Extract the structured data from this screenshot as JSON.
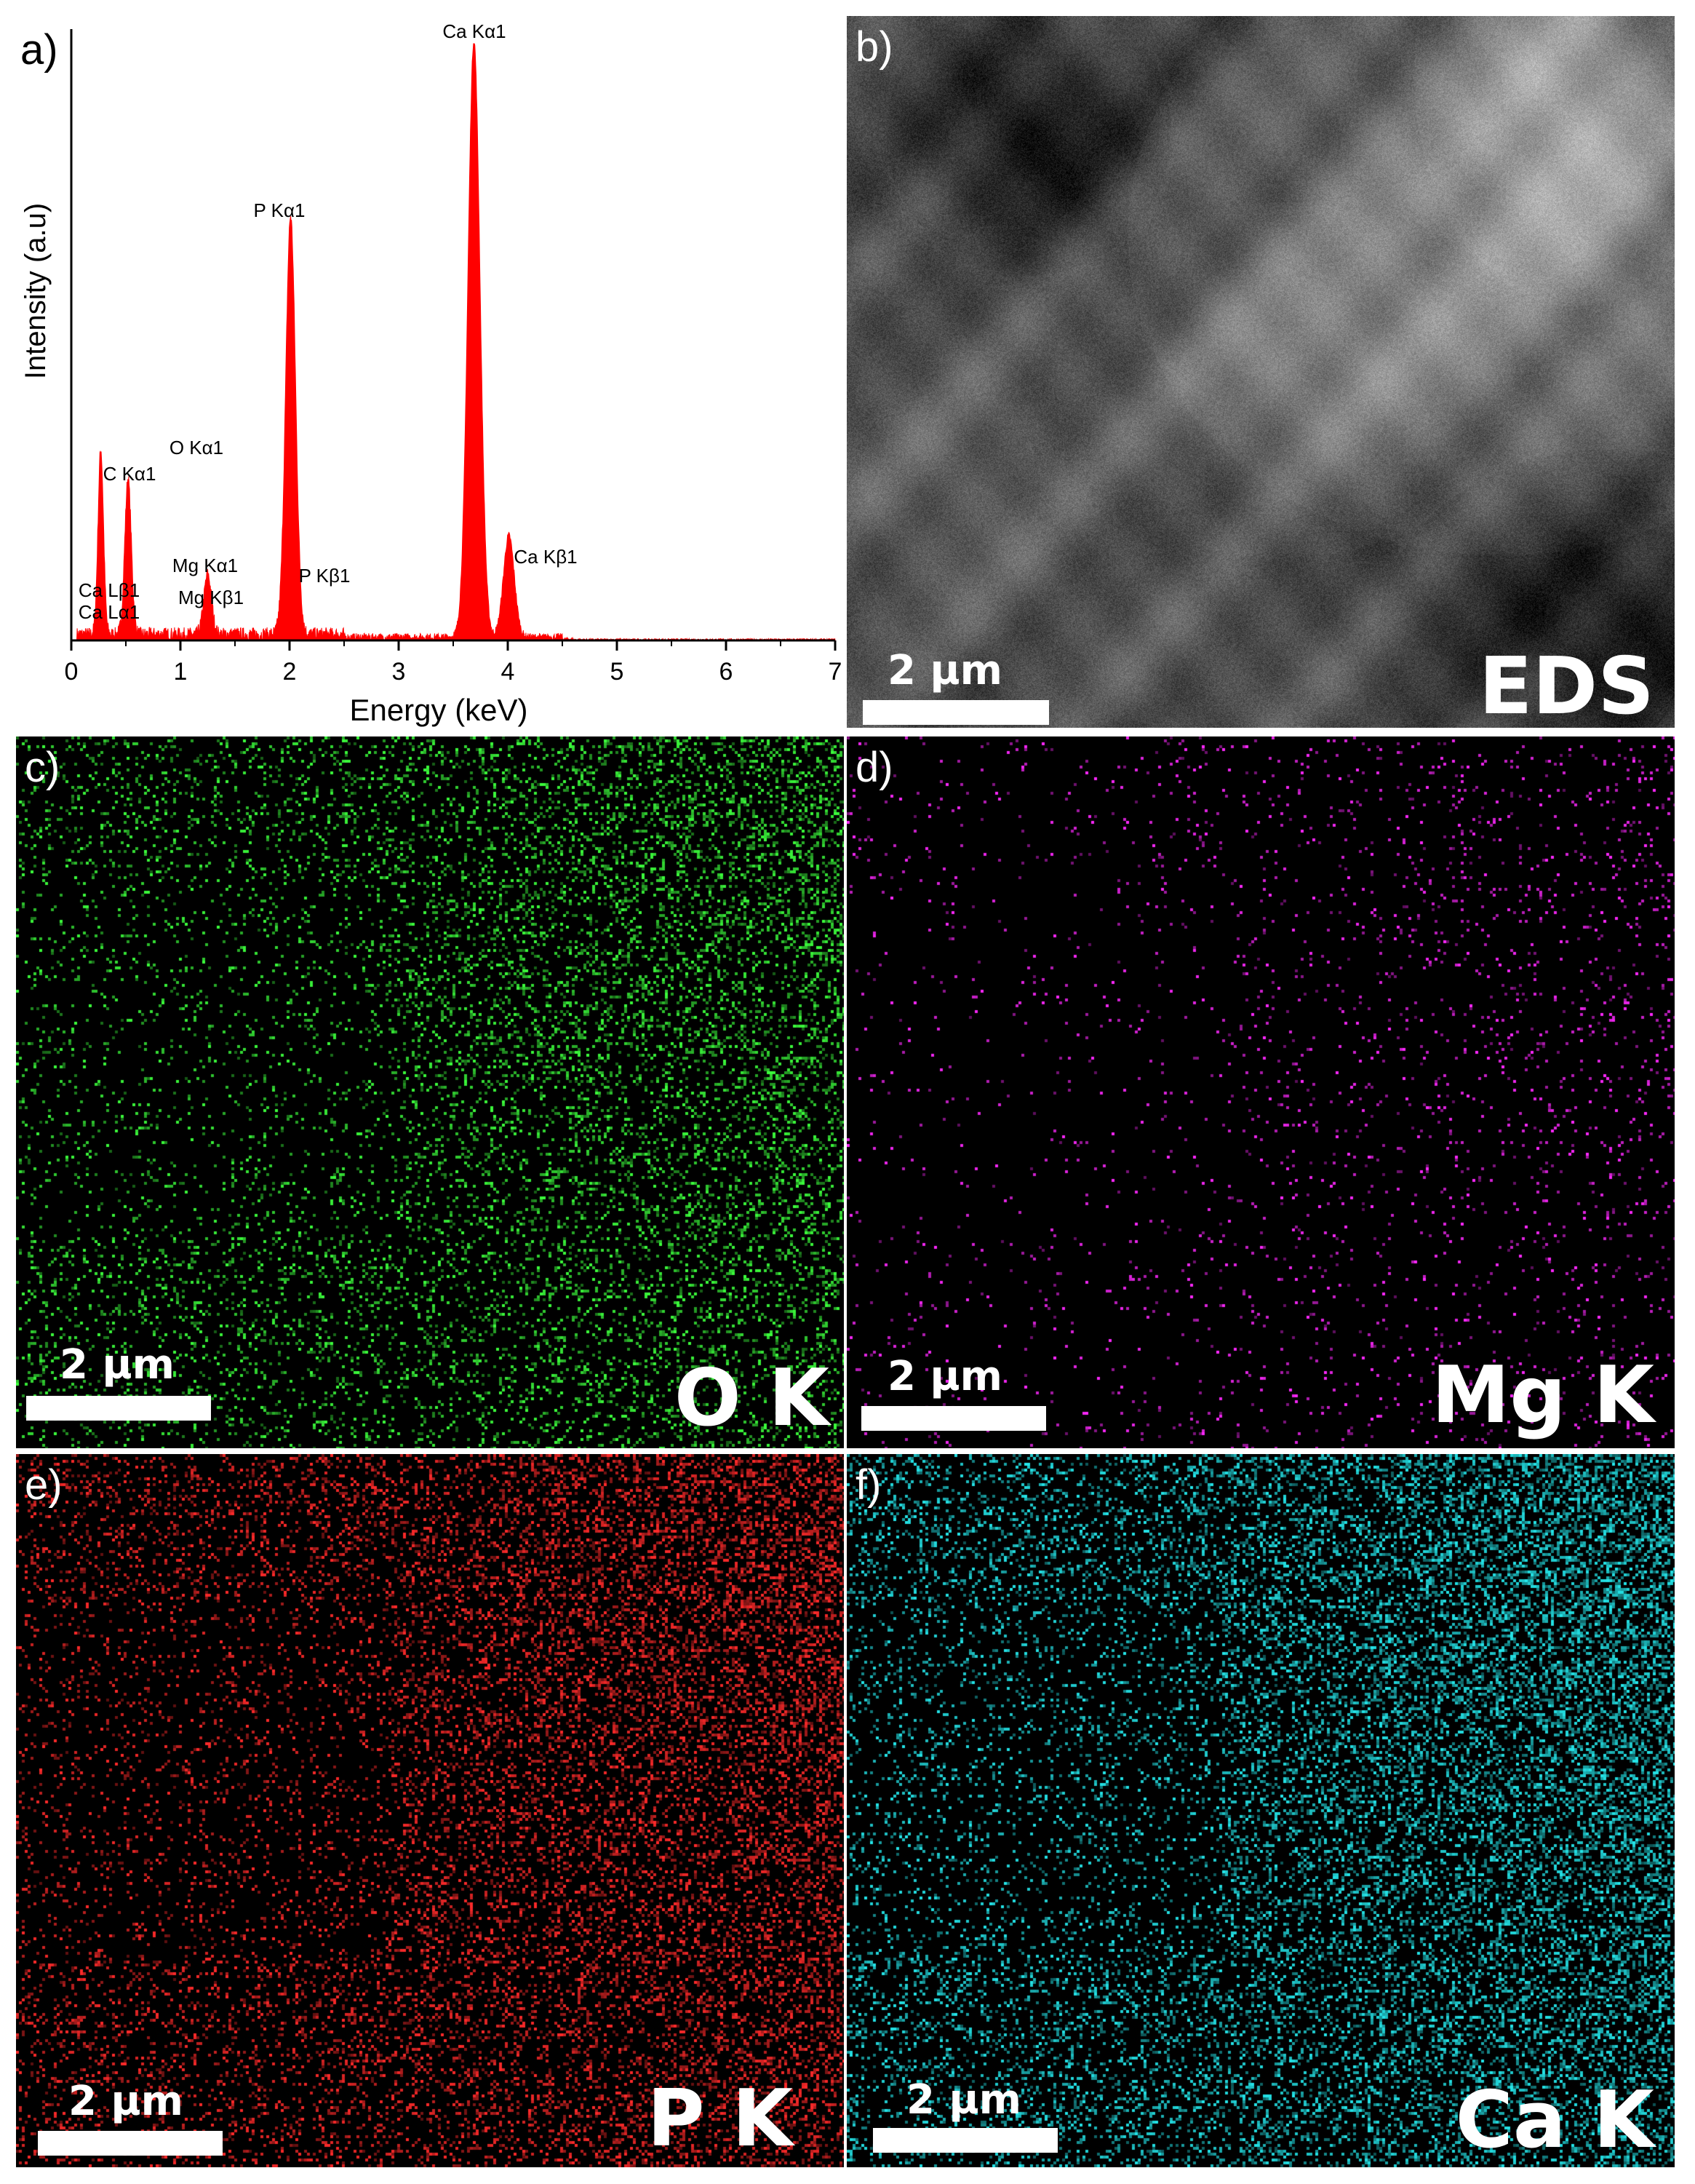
{
  "panels": {
    "a": {
      "letter": "a)"
    },
    "b": {
      "letter": "b)",
      "scale": "2 µm",
      "label": "EDS"
    },
    "c": {
      "letter": "c)",
      "scale": "2 µm",
      "label": "O K",
      "color": "#3cff3c"
    },
    "d": {
      "letter": "d)",
      "scale": "2 µm",
      "label": "Mg K",
      "color": "#ff28ff"
    },
    "e": {
      "letter": "e)",
      "scale": "2 µm",
      "label": "P K",
      "color": "#ff2a2a"
    },
    "f": {
      "letter": "f)",
      "scale": "2 µm",
      "label": "Ca K",
      "color": "#24e6ea"
    }
  },
  "chart_data": {
    "type": "area",
    "title": "",
    "xlabel": "Energy (keV)",
    "ylabel": "Intensity (a.u)",
    "xlim": [
      0,
      7
    ],
    "ylim": [
      0,
      100
    ],
    "x_ticks": [
      "0",
      "1",
      "2",
      "3",
      "4",
      "5",
      "6",
      "7"
    ],
    "grid": false,
    "series_color": "#ff0000",
    "peaks": [
      {
        "x": 0.27,
        "y": 31
      },
      {
        "x": 0.52,
        "y": 26
      },
      {
        "x": 1.25,
        "y": 10
      },
      {
        "x": 2.01,
        "y": 70
      },
      {
        "x": 3.69,
        "y": 100
      },
      {
        "x": 4.01,
        "y": 17
      }
    ],
    "annotations": [
      {
        "text": "Ca Kα1",
        "x": 3.69
      },
      {
        "text": "P Kα1",
        "x": 2.01
      },
      {
        "text": "O Kα1",
        "x": 0.52
      },
      {
        "text": "C Kα1",
        "x": 0.27
      },
      {
        "text": "Ca Lβ1",
        "x": 0.34
      },
      {
        "text": "Ca Lα1",
        "x": 0.34
      },
      {
        "text": "Mg Kα1",
        "x": 1.25
      },
      {
        "text": "Mg Kβ1",
        "x": 1.3
      },
      {
        "text": "P Kβ1",
        "x": 2.14
      },
      {
        "text": "Ca Kβ1",
        "x": 4.01
      }
    ]
  }
}
